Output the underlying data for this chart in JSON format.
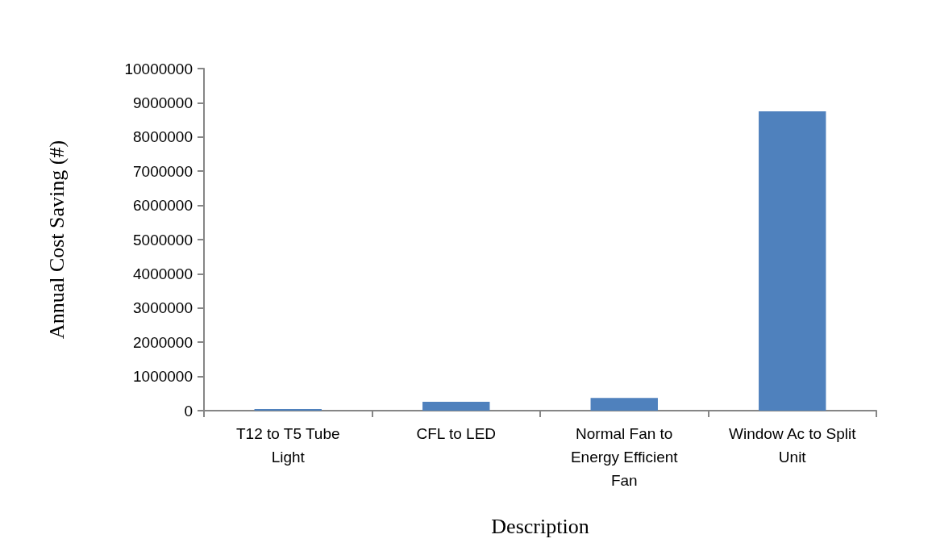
{
  "chart_data": {
    "type": "bar",
    "xlabel": "Description",
    "ylabel": "Annual Cost Saving (#)",
    "categories": [
      "T12 to T5 Tube Light",
      "CFL to LED",
      "Normal Fan to Energy Efficient Fan",
      "Window Ac to Split Unit"
    ],
    "values": [
      50000,
      260000,
      370000,
      8750000
    ],
    "color": "#4f81bd",
    "ylim": [
      0,
      10000000
    ],
    "yticks": [
      0,
      1000000,
      2000000,
      3000000,
      4000000,
      5000000,
      6000000,
      7000000,
      8000000,
      9000000,
      10000000
    ],
    "grid": false
  }
}
